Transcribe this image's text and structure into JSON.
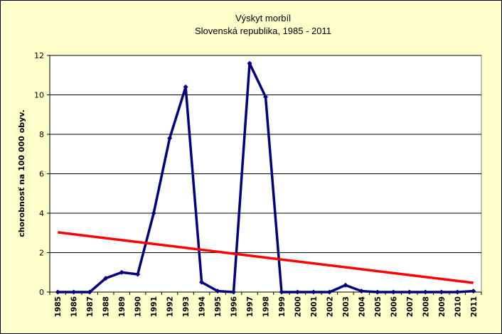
{
  "chart_data": {
    "type": "line",
    "title": "Výskyt morbíl",
    "subtitle": "Slovenská republika, 1985 - 2011",
    "xlabel": "",
    "ylabel": "chorobnosť na 100 000 obyv.",
    "ylim": [
      0,
      12
    ],
    "yticks": [
      0,
      2,
      4,
      6,
      8,
      10,
      12
    ],
    "grid": true,
    "categories": [
      "1985",
      "1986",
      "1987",
      "1988",
      "1989",
      "1990",
      "1991",
      "1992",
      "1993",
      "1994",
      "1995",
      "1996",
      "1997",
      "1998",
      "1999",
      "2000",
      "2001",
      "2002",
      "2003",
      "2004",
      "2005",
      "2006",
      "2007",
      "2008",
      "2009",
      "2010",
      "2011"
    ],
    "series": [
      {
        "values": [
          0,
          0,
          0,
          0.7,
          1.0,
          0.9,
          4.0,
          7.8,
          10.4,
          0.5,
          0.05,
          0,
          11.6,
          9.9,
          0,
          0,
          0,
          0,
          0.35,
          0.05,
          0,
          0,
          0,
          0,
          0,
          0,
          0.05
        ],
        "color": "#000080"
      }
    ],
    "trendline": {
      "type": "linear",
      "start": 3.03,
      "end": 0.47,
      "color": "#FF0000"
    },
    "colors": {
      "background": "#FFFFCC",
      "plot_background": "#FFFFFF"
    }
  }
}
